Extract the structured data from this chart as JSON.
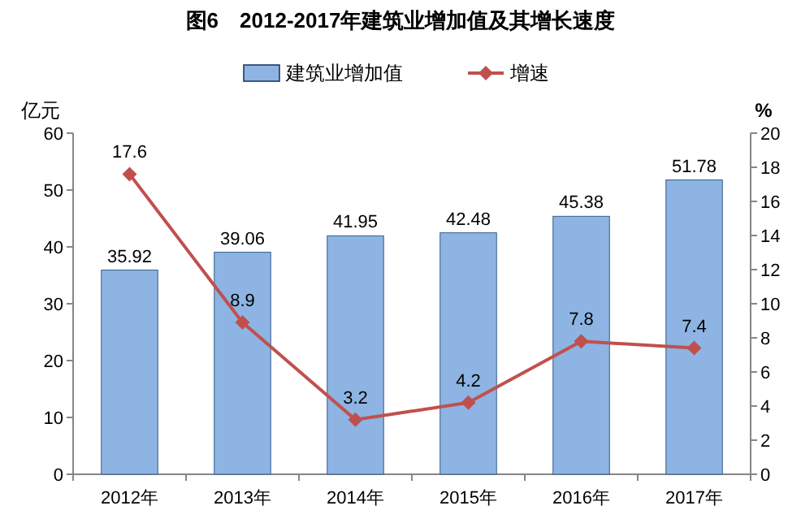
{
  "chart_data": {
    "type": "bar",
    "title": "图6　2012-2017年建筑业增加值及其增长速度",
    "ylabel": "亿元",
    "y2label": "%",
    "categories": [
      "2012年",
      "2013年",
      "2014年",
      "2015年",
      "2016年",
      "2017年"
    ],
    "series": [
      {
        "name": "建筑业增加值",
        "color": "#8db4e2",
        "values": [
          35.92,
          39.06,
          41.95,
          42.48,
          45.38,
          51.78
        ]
      },
      {
        "name": "增速",
        "type": "line",
        "axis": "y2",
        "color": "#c0504d",
        "marker": "diamond",
        "values": [
          17.6,
          8.9,
          3.2,
          4.2,
          7.8,
          7.4
        ]
      }
    ],
    "ylim": [
      0,
      60
    ],
    "yticks": [
      0,
      10,
      20,
      30,
      40,
      50,
      60
    ],
    "y2lim": [
      0,
      20
    ],
    "y2ticks": [
      0,
      2,
      4,
      6,
      8,
      10,
      12,
      14,
      16,
      18,
      20
    ],
    "data_labels": true,
    "legend": "top",
    "grid": false
  }
}
